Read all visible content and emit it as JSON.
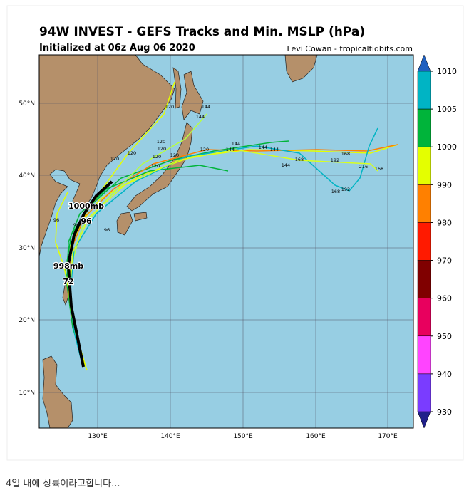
{
  "header": {
    "title": "94W INVEST - GEFS Tracks and Min. MSLP (hPa)",
    "subtitle": "Initialized at 06z Aug 06 2020",
    "credit": "Levi Cowan - tropicaltidbits.com"
  },
  "map": {
    "lon_labels": [
      "130°E",
      "140°E",
      "150°E",
      "160°E",
      "170°E"
    ],
    "lat_labels": [
      "50°N",
      "40°N",
      "30°N",
      "20°N",
      "10°N"
    ],
    "annotations": [
      "1000mb",
      "96",
      "998mb",
      "72"
    ],
    "track_labels": [
      "120",
      "144",
      "144",
      "120",
      "120",
      "120",
      "120",
      "120",
      "120",
      "120",
      "120",
      "144",
      "144",
      "144",
      "144",
      "144",
      "168",
      "168",
      "192",
      "216",
      "168",
      "168",
      "192",
      "96",
      "96",
      "96"
    ]
  },
  "colorbar": {
    "ticks": [
      1010,
      1005,
      1000,
      990,
      980,
      970,
      960,
      950,
      940,
      930
    ],
    "colors": [
      "#00b4c4",
      "#00b43a",
      "#e4ff00",
      "#ff8000",
      "#ff1a00",
      "#800000",
      "#e8005e",
      "#ff44ff",
      "#7a3cff"
    ]
  },
  "caption": "4일 내에 상륙이라고합니다..."
}
